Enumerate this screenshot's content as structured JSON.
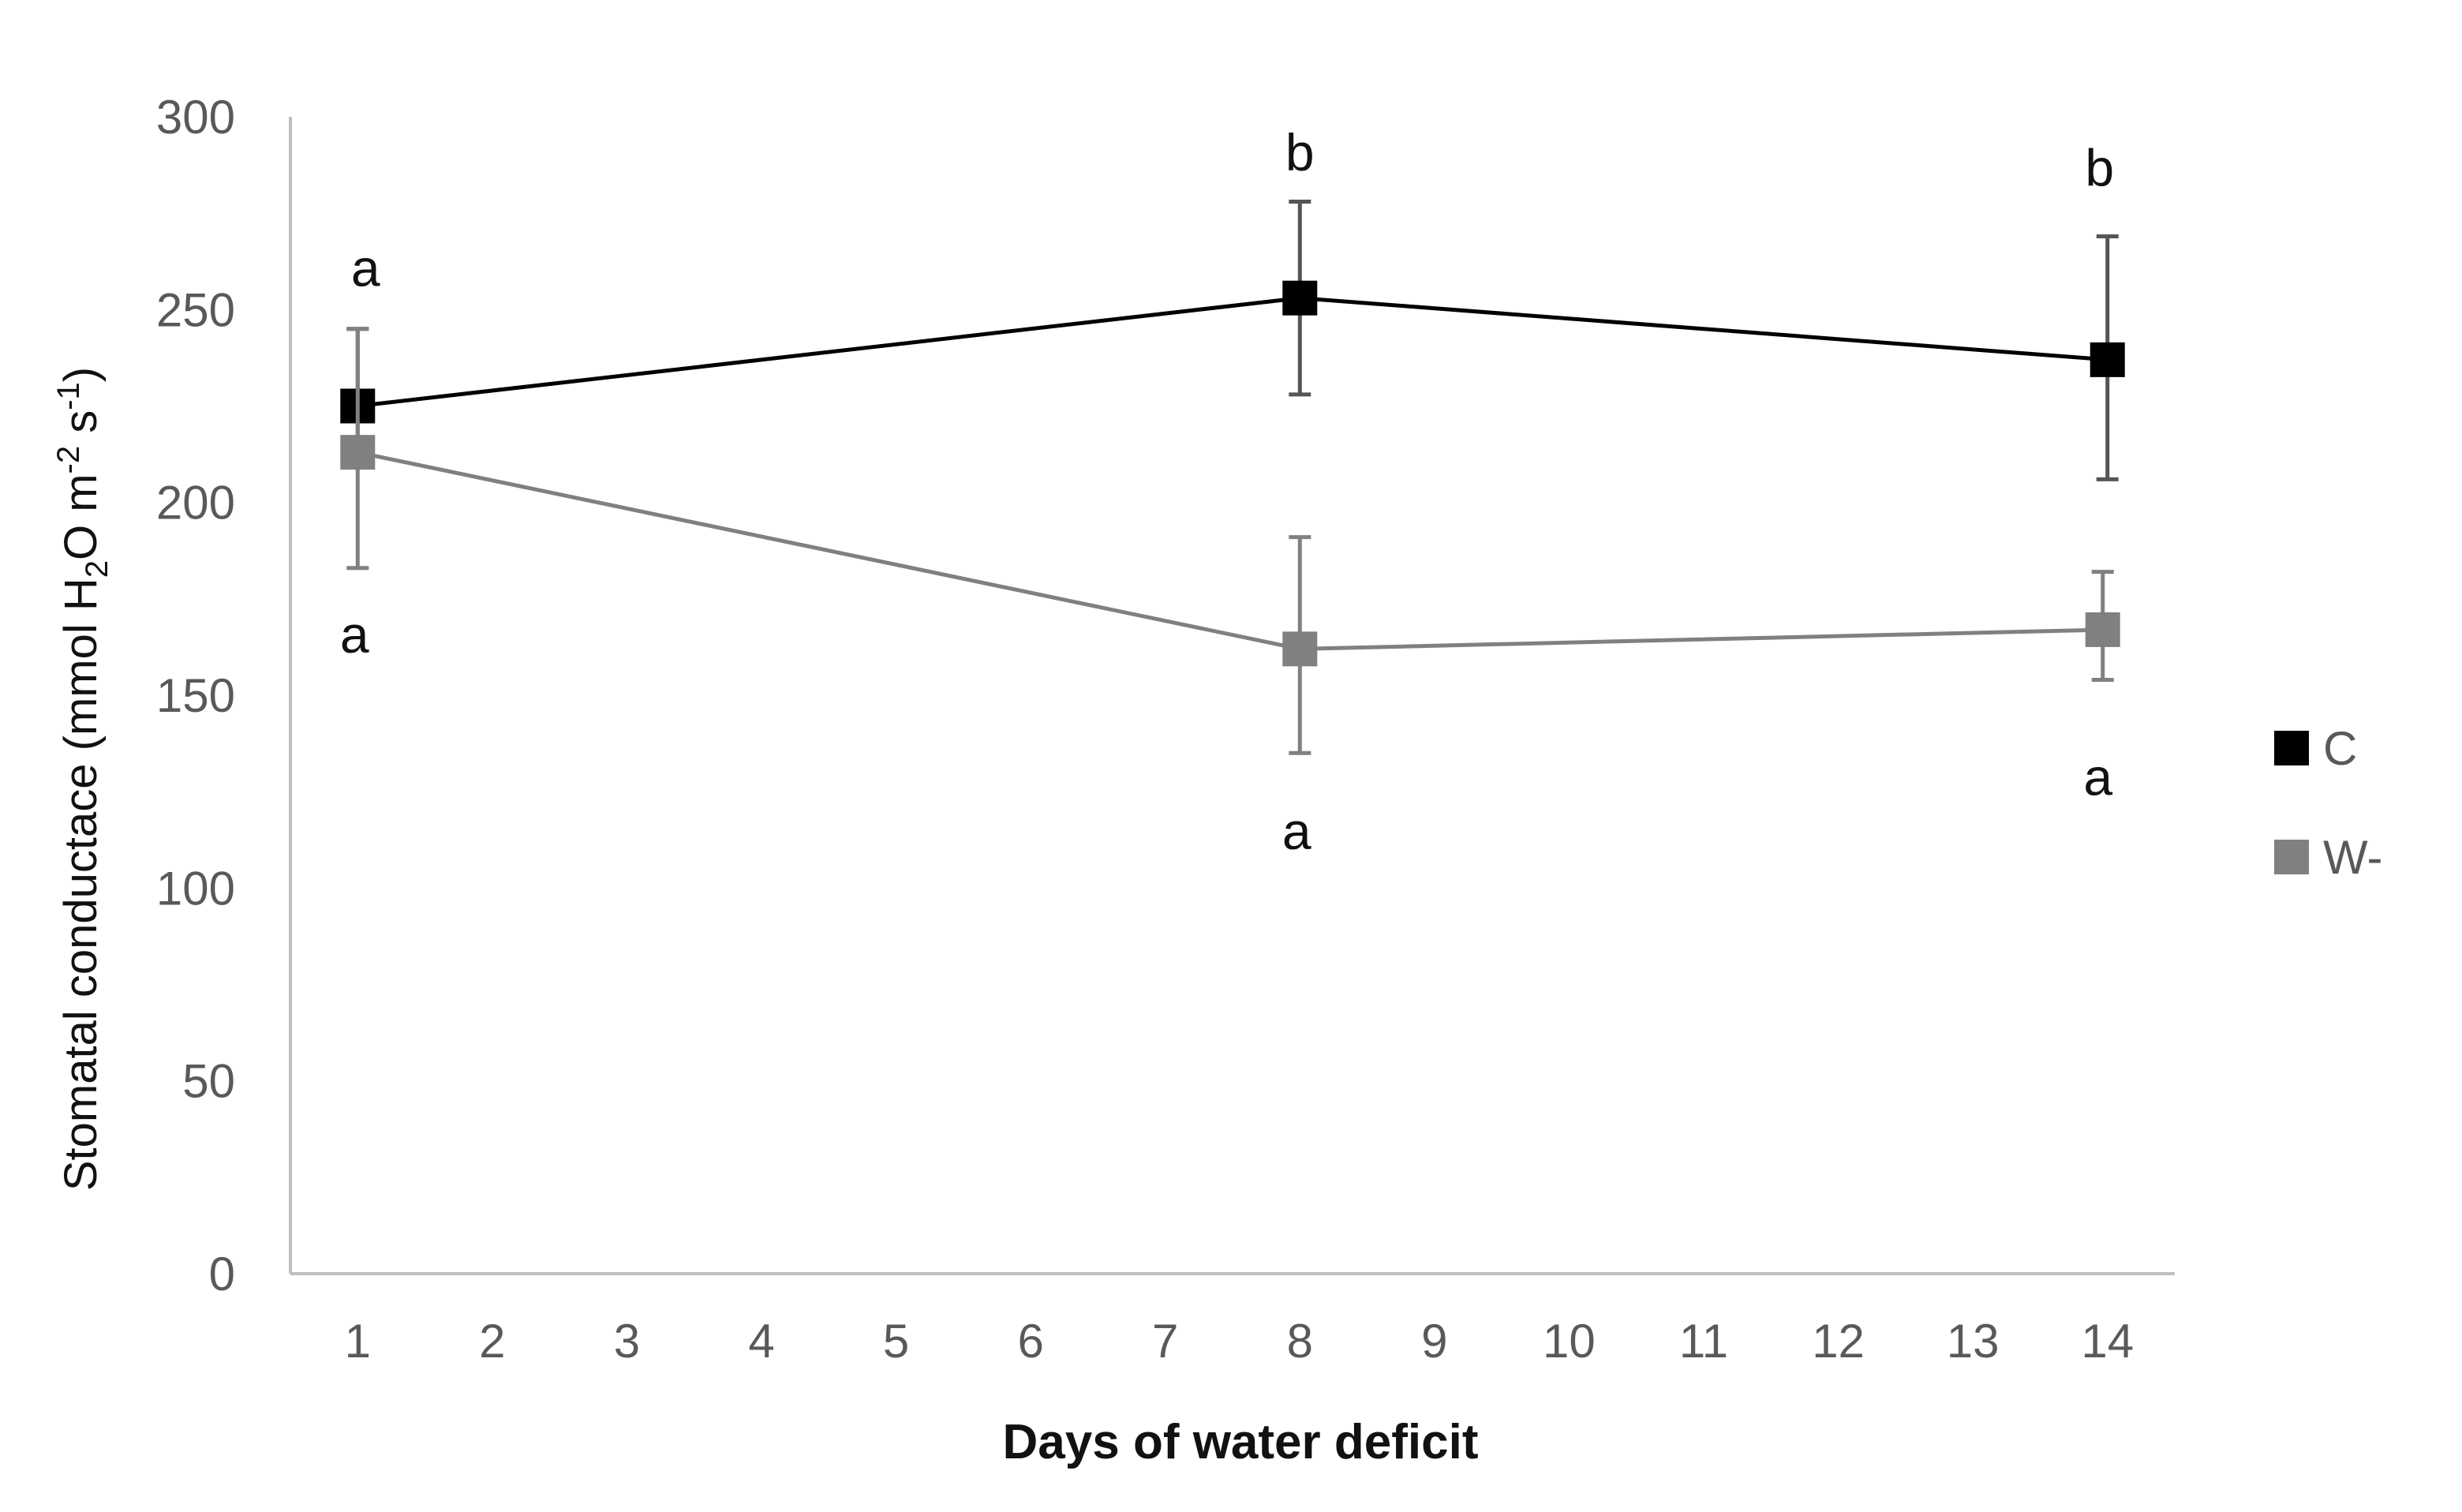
{
  "chart_data": {
    "type": "line",
    "title": "",
    "xlabel": "Days of water deficit",
    "ylabel": {
      "prefix": "Stomatal conductace (mmol H",
      "sub": "2",
      "mid1": "O m",
      "sup1": "-2",
      "mid2": " s",
      "sup2": "-1",
      "suffix": ")"
    },
    "xlim": [
      0.5,
      14.5
    ],
    "ylim": [
      0,
      300
    ],
    "x_ticks": [
      1,
      2,
      3,
      4,
      5,
      6,
      7,
      8,
      9,
      10,
      11,
      12,
      13,
      14
    ],
    "y_ticks": [
      0,
      50,
      100,
      150,
      200,
      250,
      300
    ],
    "grid": false,
    "legend_position": "right",
    "series": [
      {
        "name": "C",
        "color": "#000000",
        "x": [
          1,
          8,
          14
        ],
        "y": [
          225,
          253,
          237
        ],
        "error": [
          [
            12,
            20
          ],
          [
            25,
            25
          ],
          [
            31,
            32
          ]
        ],
        "letters": [
          "a",
          "b",
          "b"
        ],
        "letter_y": [
          261,
          291,
          287
        ]
      },
      {
        "name": "W-",
        "color": "#808080",
        "x": [
          1,
          8,
          14
        ],
        "y": [
          213,
          162,
          167
        ],
        "error": [
          [
            30,
            32
          ],
          [
            27,
            29
          ],
          [
            13,
            15
          ]
        ],
        "letters": [
          "a",
          "a",
          "a"
        ],
        "letter_y": [
          166,
          115,
          129
        ]
      }
    ]
  }
}
